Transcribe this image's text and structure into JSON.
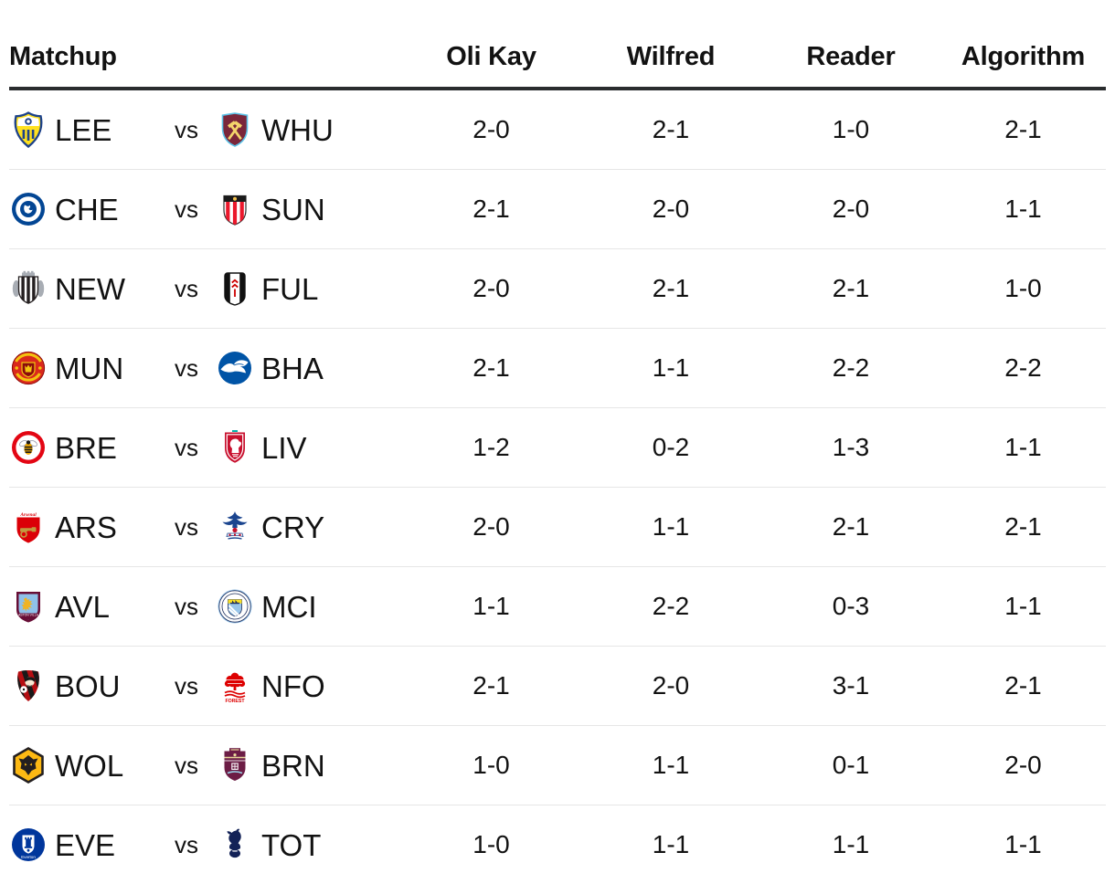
{
  "header": {
    "columns": [
      "Matchup",
      "Oli Kay",
      "Wilfred",
      "Reader",
      "Algorithm"
    ]
  },
  "labels": {
    "vs": "vs"
  },
  "colors": {
    "text": "#121212",
    "header_rule": "#2a2c2e",
    "row_divider": "#e6e6e6",
    "background": "#ffffff"
  },
  "crest_colors": {
    "leeds-united": {
      "yellow": "#FFE11E",
      "blue": "#1D428A",
      "white": "#FFFFFF"
    },
    "west-ham": {
      "shield": "#7A263A",
      "border": "#5BC2E7",
      "hammers": "#F3D56B"
    },
    "chelsea": {
      "blue": "#034694",
      "white": "#FFFFFF"
    },
    "sunderland": {
      "red": "#EB172B",
      "white": "#FFFFFF",
      "dark": "#1A1A1A",
      "gold": "#F2C14E"
    },
    "newcastle": {
      "white": "#FFFFFF",
      "black": "#241F20",
      "gray": "#A8ADB4"
    },
    "fulham": {
      "white": "#FFFFFF",
      "black": "#111111",
      "red": "#CC0000"
    },
    "man-united": {
      "red": "#DA291C",
      "gold": "#F3C40F",
      "dark": "#8A0B0B"
    },
    "brighton": {
      "blue": "#0054A6",
      "white": "#FFFFFF"
    },
    "brentford": {
      "red": "#E30613",
      "white": "#FFFFFF",
      "gold": "#F2A900",
      "black": "#1A1A1A"
    },
    "liverpool": {
      "red": "#C8102E",
      "white": "#FFFFFF",
      "teal": "#00B2A9"
    },
    "arsenal": {
      "red": "#DB0007",
      "gold": "#C19A3F",
      "white": "#FFFFFF"
    },
    "crystal-palace": {
      "blue": "#1B458F",
      "red": "#C4122E",
      "white": "#FFFFFF"
    },
    "aston-villa": {
      "claret": "#670E36",
      "sky": "#8FC1E9",
      "gold": "#F0B323",
      "white": "#FFFFFF"
    },
    "man-city": {
      "sky": "#98C5E9",
      "navy": "#1C2C5B",
      "white": "#FFFFFF",
      "gold": "#FBE122"
    },
    "bournemouth": {
      "red": "#B50E12",
      "black": "#191919",
      "cream": "#F7E8D3",
      "white": "#FFFFFF"
    },
    "nottingham-forest": {
      "red": "#DD0000",
      "white": "#FFFFFF"
    },
    "wolves": {
      "gold": "#FDB913",
      "black": "#231F20"
    },
    "burnley": {
      "claret": "#6C1D45",
      "blue": "#99D6EA",
      "gold": "#E8D79A",
      "white": "#FFFFFF"
    },
    "everton": {
      "blue": "#00369C",
      "white": "#FFFFFF"
    },
    "tottenham": {
      "navy": "#132257",
      "white": "#FFFFFF"
    }
  },
  "rows": [
    {
      "home": {
        "abbr": "LEE",
        "crest": "leeds-united"
      },
      "away": {
        "abbr": "WHU",
        "crest": "west-ham"
      },
      "scores": [
        "2-0",
        "2-1",
        "1-0",
        "2-1"
      ]
    },
    {
      "home": {
        "abbr": "CHE",
        "crest": "chelsea"
      },
      "away": {
        "abbr": "SUN",
        "crest": "sunderland"
      },
      "scores": [
        "2-1",
        "2-0",
        "2-0",
        "1-1"
      ]
    },
    {
      "home": {
        "abbr": "NEW",
        "crest": "newcastle"
      },
      "away": {
        "abbr": "FUL",
        "crest": "fulham"
      },
      "scores": [
        "2-0",
        "2-1",
        "2-1",
        "1-0"
      ]
    },
    {
      "home": {
        "abbr": "MUN",
        "crest": "man-united"
      },
      "away": {
        "abbr": "BHA",
        "crest": "brighton"
      },
      "scores": [
        "2-1",
        "1-1",
        "2-2",
        "2-2"
      ]
    },
    {
      "home": {
        "abbr": "BRE",
        "crest": "brentford"
      },
      "away": {
        "abbr": "LIV",
        "crest": "liverpool"
      },
      "scores": [
        "1-2",
        "0-2",
        "1-3",
        "1-1"
      ]
    },
    {
      "home": {
        "abbr": "ARS",
        "crest": "arsenal"
      },
      "away": {
        "abbr": "CRY",
        "crest": "crystal-palace"
      },
      "scores": [
        "2-0",
        "1-1",
        "2-1",
        "2-1"
      ]
    },
    {
      "home": {
        "abbr": "AVL",
        "crest": "aston-villa"
      },
      "away": {
        "abbr": "MCI",
        "crest": "man-city"
      },
      "scores": [
        "1-1",
        "2-2",
        "0-3",
        "1-1"
      ]
    },
    {
      "home": {
        "abbr": "BOU",
        "crest": "bournemouth"
      },
      "away": {
        "abbr": "NFO",
        "crest": "nottingham-forest"
      },
      "scores": [
        "2-1",
        "2-0",
        "3-1",
        "2-1"
      ]
    },
    {
      "home": {
        "abbr": "WOL",
        "crest": "wolves"
      },
      "away": {
        "abbr": "BRN",
        "crest": "burnley"
      },
      "scores": [
        "1-0",
        "1-1",
        "0-1",
        "2-0"
      ]
    },
    {
      "home": {
        "abbr": "EVE",
        "crest": "everton"
      },
      "away": {
        "abbr": "TOT",
        "crest": "tottenham"
      },
      "scores": [
        "1-0",
        "1-1",
        "1-1",
        "1-1"
      ]
    }
  ]
}
